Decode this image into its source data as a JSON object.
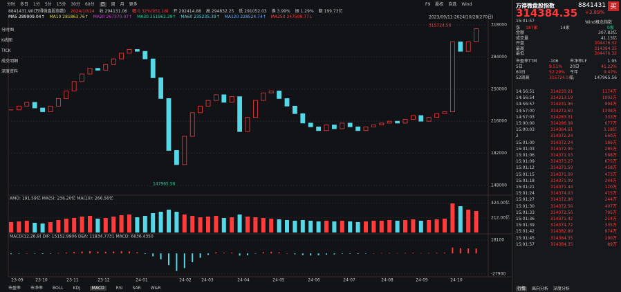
{
  "toolbar": {
    "periods": [
      "分时",
      "多日",
      "1分",
      "5分",
      "15分",
      "30分",
      "60分",
      "日",
      "周",
      "月",
      "更多"
    ],
    "right": [
      "F9",
      "股权",
      "自选",
      "Wind"
    ]
  },
  "info_line": [
    "8841431.WI(万得微盘股指数)",
    "2024/10/24",
    "收 294131.06",
    "幅 0.32%(951.18)",
    "开 292414.88",
    "高 294832.25",
    "低 291052.03",
    "换 3.99%",
    "振 1.29%",
    "额 199.73亿"
  ],
  "ma_line": [
    "MA5 289909.04↑",
    "MA10 281863.76↑",
    "MA20 267370.07↑",
    "MA30 251962.29↑",
    "MA60 235235.39↑",
    "MA120 228524.74↑",
    "MA250 247509.77↓"
  ],
  "side_tabs": [
    "分时图",
    "K线图",
    "TICK",
    "成交明细",
    "深度资料"
  ],
  "price_chart": {
    "type": "candlestick",
    "range_label": "2023/09/11-2024/10/28(270日)",
    "high_label": "315724.56",
    "low_label": "147965.56",
    "close": [
      228000,
      232000,
      236000,
      230000,
      226000,
      232000,
      240000,
      248000,
      258000,
      266000,
      272000,
      270000,
      276000,
      282000,
      288000,
      292000,
      290000,
      282000,
      262000,
      240000,
      185000,
      170000,
      200000,
      225000,
      232000,
      238000,
      244000,
      236000,
      242000,
      205000,
      220000,
      238000,
      246000,
      248000,
      240000,
      232000,
      224000,
      214000,
      210000,
      206000,
      212000,
      208000,
      214000,
      210000,
      206000,
      210000,
      212000,
      214000,
      216000,
      214000,
      218000,
      222000,
      216000,
      220000,
      224000,
      226000,
      300000,
      290000,
      300000,
      314000
    ],
    "ylim": [
      145000,
      322400
    ],
    "yticks": [
      318000,
      284000,
      250000,
      216000,
      182000,
      148000
    ],
    "x_labels": [
      "23-09",
      "23-10",
      "23-11",
      "23-12",
      "24-01",
      "24-02",
      "24-03",
      "24-04",
      "24-05",
      "24-06",
      "24-07",
      "24-08",
      "24-09",
      "24-10"
    ]
  },
  "volume_chart": {
    "type": "bar",
    "title": "AMO: 191.59亿  MA(5): 236.20亿  MA(10): 266.56亿",
    "values": [
      150,
      160,
      170,
      140,
      130,
      150,
      180,
      200,
      210,
      230,
      240,
      200,
      210,
      230,
      250,
      260,
      220,
      240,
      280,
      300,
      330,
      300,
      260,
      240,
      220,
      230,
      240,
      210,
      220,
      260,
      230,
      220,
      210,
      200,
      190,
      180,
      170,
      180,
      170,
      160,
      170,
      160,
      170,
      160,
      150,
      160,
      170,
      170,
      180,
      170,
      180,
      190,
      170,
      180,
      190,
      200,
      420,
      380,
      330,
      310
    ],
    "ylim": [
      0,
      460
    ],
    "yticks": [
      {
        "value": 424,
        "label": "424.00亿"
      },
      {
        "value": 212,
        "label": "212.00亿"
      }
    ]
  },
  "macd_chart": {
    "type": "bar",
    "title": "MACD(12,26,9)  DIF: 15152.9906  DEA: 11834.7731  MACD: 6636.4350",
    "values": [
      -1000,
      -500,
      200,
      -300,
      -800,
      -400,
      600,
      1200,
      2000,
      2600,
      3000,
      2400,
      2200,
      2600,
      3000,
      2800,
      1600,
      -800,
      -4000,
      -8000,
      -16000,
      -24000,
      -20000,
      -12000,
      -6000,
      -2000,
      1500,
      1000,
      1200,
      -3000,
      -2500,
      -500,
      1800,
      2200,
      1400,
      200,
      -1200,
      -2400,
      -2800,
      -2600,
      -1600,
      -1400,
      -600,
      -600,
      -800,
      -200,
      200,
      400,
      600,
      400,
      600,
      800,
      400,
      600,
      800,
      900,
      8000,
      7000,
      6800,
      6636.435
    ],
    "ylim": [
      -30000,
      20000
    ],
    "yticks": [
      18100,
      -27900
    ]
  },
  "bottom_tabs": [
    "市盈率",
    "市净率",
    "BOLL",
    "KDJ",
    "MACD",
    "RSI",
    "SAR",
    "W&R"
  ],
  "quote": {
    "title": "万得微盘股指数",
    "code": "8841431",
    "price": "314384.35",
    "change": "+3.89%",
    "buy": "买",
    "time": "15:01:57",
    "concept": "Wind概念指数",
    "up_label": "涨",
    "up_count": "187家",
    "flat": "14家",
    "down": "0家"
  },
  "stats": [
    [
      "金额",
      "307.83亿"
    ],
    [
      "成交量",
      "41.13亿"
    ],
    [
      "开盘",
      "304476.32"
    ],
    [
      "最高",
      "314384.35"
    ],
    [
      "最低",
      "304476.32"
    ]
  ],
  "ratios": [
    [
      "市盈率TTM",
      "-106",
      "市净率LF",
      "1.95"
    ],
    [
      "5日",
      "9.51%",
      "20日",
      "41.22%"
    ],
    [
      "60日",
      "52.29%",
      "今年",
      "9.47%"
    ],
    [
      "52周高",
      "315724.56",
      "低",
      "147965.56"
    ]
  ],
  "ticks": [
    [
      "14:56:51",
      "314233.21",
      "1174万"
    ],
    [
      "14:56:54",
      "314213.19",
      "1002万"
    ],
    [
      "14:56:57",
      "314231.96",
      "994万"
    ],
    [
      "14:57:00",
      "314272.60",
      "1308万"
    ],
    [
      "14:57:03",
      "314283.31",
      "333万"
    ],
    [
      "15:00:00",
      "314286.08",
      "677万"
    ],
    [
      "15:00:03",
      "314364.61",
      "3.18亿"
    ],
    [
      "2",
      "314372.24",
      "560万"
    ],
    [
      "15:01:00",
      "314372.24",
      "189万"
    ],
    [
      "15:01:03",
      "314372.95",
      "285万"
    ],
    [
      "15:01:06",
      "314371.03",
      "588万"
    ],
    [
      "15:01:09",
      "314373.27",
      "675万"
    ],
    [
      "15:01:12",
      "314371.59",
      "458万"
    ],
    [
      "15:01:15",
      "314371.09",
      "473万"
    ],
    [
      "15:01:18",
      "314371.09",
      "244万"
    ],
    [
      "15:01:21",
      "314371.44",
      "120万"
    ],
    [
      "15:01:24",
      "314374.03",
      "415万"
    ],
    [
      "15:01:27",
      "314372.96",
      "244万"
    ],
    [
      "15:01:30",
      "314372.56",
      "407万"
    ],
    [
      "15:01:33",
      "314372.56",
      "795万"
    ],
    [
      "15:01:36",
      "314371.42",
      "214万"
    ],
    [
      "15:01:39",
      "314374.72",
      "335万"
    ],
    [
      "15:01:42",
      "314382.89",
      "974万"
    ],
    [
      "15:01:45",
      "314384.35",
      "190万"
    ],
    [
      "15:01:57",
      "314384.35",
      "89万"
    ]
  ],
  "panel_tabs": [
    "行情",
    "高向分析",
    "深度分析"
  ]
}
